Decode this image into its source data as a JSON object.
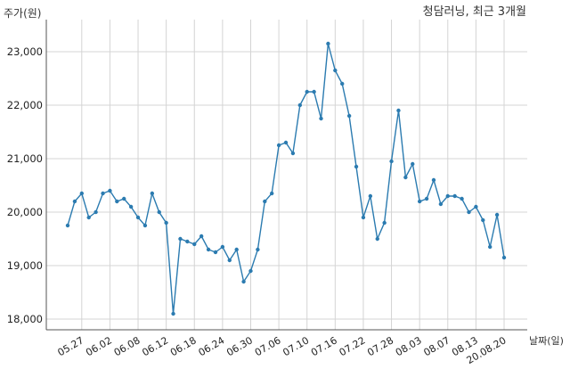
{
  "chart_data": {
    "type": "line",
    "title": "청담러닝, 최근 3개월",
    "ylabel": "주가(원)",
    "xlabel": "날짜(일)",
    "ylim": [
      17800,
      23600
    ],
    "y_ticks": [
      18000,
      19000,
      20000,
      21000,
      22000,
      23000
    ],
    "y_tick_labels": [
      "18,000",
      "19,000",
      "20,000",
      "21,000",
      "22,000",
      "23,000"
    ],
    "x_ticks": [
      {
        "label": "05.27",
        "index": 2
      },
      {
        "label": "06.02",
        "index": 6
      },
      {
        "label": "06.08",
        "index": 10
      },
      {
        "label": "06.12",
        "index": 14
      },
      {
        "label": "06.18",
        "index": 18
      },
      {
        "label": "06.24",
        "index": 22
      },
      {
        "label": "06.30",
        "index": 26
      },
      {
        "label": "07.06",
        "index": 30
      },
      {
        "label": "07.10",
        "index": 34
      },
      {
        "label": "07.16",
        "index": 38
      },
      {
        "label": "07.22",
        "index": 42
      },
      {
        "label": "07.28",
        "index": 46
      },
      {
        "label": "08.03",
        "index": 50
      },
      {
        "label": "08.07",
        "index": 54
      },
      {
        "label": "08.13",
        "index": 58
      },
      {
        "label": "20.08.20",
        "index": 62
      }
    ],
    "grid": "x and y",
    "color": "#2b7bb0",
    "values": [
      19750,
      20200,
      20350,
      19900,
      20000,
      20350,
      20400,
      20200,
      20250,
      20100,
      19900,
      19750,
      20350,
      20000,
      19800,
      18100,
      19500,
      19450,
      19400,
      19550,
      19300,
      19250,
      19350,
      19100,
      19300,
      18700,
      18900,
      19300,
      20200,
      20350,
      21250,
      21300,
      21100,
      22000,
      22250,
      22250,
      21750,
      23150,
      22650,
      22400,
      21800,
      20850,
      19900,
      20300,
      19500,
      19800,
      20950,
      21900,
      20650,
      20900,
      20200,
      20250,
      20600,
      20150,
      20300,
      20300,
      20250,
      20000,
      20100,
      19850,
      19350,
      19950,
      19150
    ]
  }
}
